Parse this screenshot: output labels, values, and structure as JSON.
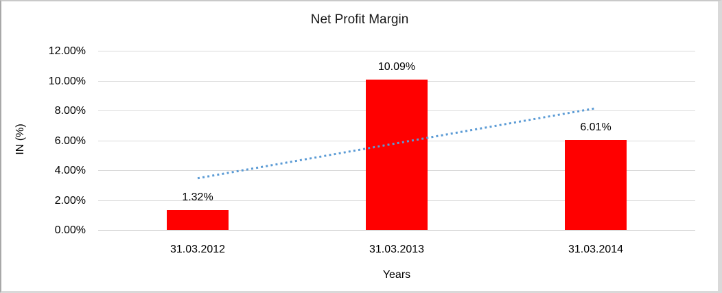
{
  "chart_data": {
    "type": "bar",
    "title": "Net Profit Margin",
    "xlabel": "Years",
    "ylabel": "IN (%)",
    "categories": [
      "31.03.2012",
      "31.03.2013",
      "31.03.2014"
    ],
    "values": [
      1.32,
      10.09,
      6.01
    ],
    "data_labels": [
      "1.32%",
      "10.09%",
      "6.01%"
    ],
    "ylim": [
      0,
      12
    ],
    "yticks": [
      {
        "value": 0,
        "label": "0.00%"
      },
      {
        "value": 2,
        "label": "2.00%"
      },
      {
        "value": 4,
        "label": "4.00%"
      },
      {
        "value": 6,
        "label": "6.00%"
      },
      {
        "value": 8,
        "label": "8.00%"
      },
      {
        "value": 10,
        "label": "10.00%"
      },
      {
        "value": 12,
        "label": "12.00%"
      }
    ],
    "grid": true,
    "legend": false,
    "bar_color": "#ff0000",
    "gridline_color": "#d9d9d9",
    "axis_line_color": "#c6c6c6",
    "trendline": {
      "type": "linear",
      "style": "dotted",
      "color": "#5b9bd5",
      "start_value": 3.46,
      "end_value": 8.15
    }
  }
}
